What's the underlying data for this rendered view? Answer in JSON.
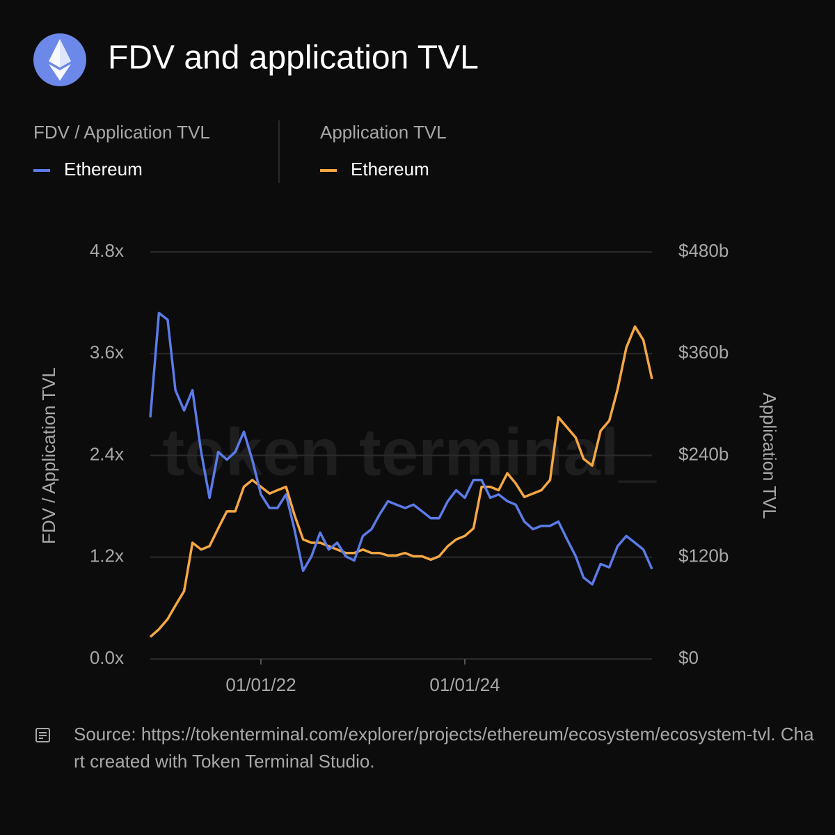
{
  "chart_data": {
    "type": "line",
    "title": "FDV and application TVL",
    "ylabel": "FDV / Application TVL",
    "y2label": "Application TVL",
    "watermark": "token terminal_",
    "source": "Source: https://tokenterminal.com/explorer/projects/ethereum/ecosystem/ecosystem-tvl. Chart created with Token Terminal Studio.",
    "grid": true,
    "x": [
      "2020-12-01",
      "2021-01-01",
      "2021-02-01",
      "2021-03-01",
      "2021-04-01",
      "2021-05-01",
      "2021-06-01",
      "2021-07-01",
      "2021-08-01",
      "2021-09-01",
      "2021-10-01",
      "2021-11-01",
      "2021-12-01",
      "2022-01-01",
      "2022-02-01",
      "2022-03-01",
      "2022-04-01",
      "2022-05-01",
      "2022-06-01",
      "2022-07-01",
      "2022-08-01",
      "2022-09-01",
      "2022-10-01",
      "2022-11-01",
      "2022-12-01",
      "2023-01-01",
      "2023-02-01",
      "2023-03-01",
      "2023-04-01",
      "2023-05-01",
      "2023-06-01",
      "2023-07-01",
      "2023-08-01",
      "2023-09-01",
      "2023-10-01",
      "2023-11-01",
      "2023-12-01",
      "2024-01-01",
      "2024-02-01",
      "2024-03-01",
      "2024-04-01",
      "2024-05-01",
      "2024-06-01",
      "2024-07-01",
      "2024-08-01",
      "2024-09-01",
      "2024-10-01",
      "2024-11-01",
      "2024-12-01",
      "2025-01-01",
      "2025-02-01",
      "2025-03-01",
      "2025-04-01",
      "2025-05-01",
      "2025-06-01",
      "2025-07-01",
      "2025-08-01",
      "2025-09-01",
      "2025-10-01",
      "2025-11-01"
    ],
    "xlim": [
      "2020-12-01",
      "2025-11-01"
    ],
    "xticks": [
      {
        "value": "2022-01-01",
        "label": "01/01/22"
      },
      {
        "value": "2024-01-01",
        "label": "01/01/24"
      }
    ],
    "ylim": [
      0,
      4.8
    ],
    "yticks": [
      {
        "value": 0,
        "label": "0.0x"
      },
      {
        "value": 1.2,
        "label": "1.2x"
      },
      {
        "value": 2.4,
        "label": "2.4x"
      },
      {
        "value": 3.6,
        "label": "3.6x"
      },
      {
        "value": 4.8,
        "label": "4.8x"
      }
    ],
    "y2lim": [
      0,
      480
    ],
    "y2ticks": [
      {
        "value": 0,
        "label": "$0"
      },
      {
        "value": 120,
        "label": "$120b"
      },
      {
        "value": 240,
        "label": "$240b"
      },
      {
        "value": 360,
        "label": "$360b"
      },
      {
        "value": 480,
        "label": "$480b"
      }
    ],
    "series": [
      {
        "name": "Ethereum",
        "color": "#5b7be8",
        "values": [
          2.85,
          4.08,
          4.0,
          3.17,
          2.93,
          3.17,
          2.44,
          1.9,
          2.44,
          2.35,
          2.44,
          2.68,
          2.35,
          1.94,
          1.78,
          1.78,
          1.94,
          1.53,
          1.04,
          1.21,
          1.49,
          1.29,
          1.37,
          1.21,
          1.16,
          1.45,
          1.53,
          1.7,
          1.86,
          1.82,
          1.78,
          1.82,
          1.74,
          1.66,
          1.66,
          1.86,
          1.99,
          1.9,
          2.11,
          2.11,
          1.9,
          1.94,
          1.86,
          1.82,
          1.62,
          1.53,
          1.57,
          1.57,
          1.62,
          1.41,
          1.21,
          0.96,
          0.88,
          1.12,
          1.08,
          1.33,
          1.45,
          1.37,
          1.29,
          1.06
        ]
      },
      {
        "name": "Ethereum",
        "color": "#f5a742",
        "axis": "y2",
        "values": [
          26,
          35,
          47,
          63,
          80,
          137,
          129,
          133,
          154,
          174,
          174,
          203,
          211,
          203,
          195,
          199,
          203,
          170,
          141,
          137,
          137,
          133,
          129,
          125,
          125,
          129,
          125,
          125,
          122,
          122,
          125,
          121,
          121,
          117,
          121,
          133,
          141,
          145,
          154,
          203,
          203,
          199,
          219,
          207,
          191,
          195,
          199,
          211,
          285,
          273,
          261,
          236,
          228,
          269,
          281,
          318,
          367,
          392,
          376,
          330
        ]
      }
    ]
  }
}
